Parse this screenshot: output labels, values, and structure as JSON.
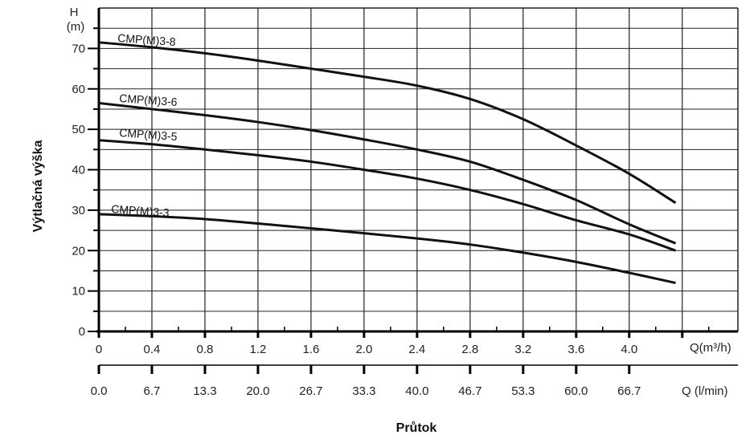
{
  "chart_data": {
    "type": "line",
    "xlabel": "Průtok",
    "ylabel": "Výtlačná výška",
    "y_unit_label": [
      "H",
      "(m)"
    ],
    "x_unit_label": "Q(m³/h)",
    "x2_unit_label": "Q (l/min)",
    "xlim": [
      0,
      4.82
    ],
    "ylim": [
      0,
      80
    ],
    "grid": true,
    "x_ticks": [
      0,
      0.4,
      0.8,
      1.2,
      1.6,
      2.0,
      2.4,
      2.8,
      3.2,
      3.6,
      4.0
    ],
    "x_tick_labels": [
      "0",
      "0.4",
      "0.8",
      "1.2",
      "1.6",
      "2.0",
      "2.4",
      "2.8",
      "3.2",
      "3.6",
      "4.0"
    ],
    "x2_tick_labels": [
      "0.0",
      "6.7",
      "13.3",
      "20.0",
      "26.7",
      "33.3",
      "40.0",
      "46.7",
      "53.3",
      "60.0",
      "66.7"
    ],
    "y_ticks": [
      0,
      10,
      20,
      30,
      40,
      50,
      60,
      70
    ],
    "y_tick_labels": [
      "0",
      "10",
      "20",
      "30",
      "40",
      "50",
      "60",
      "70"
    ],
    "x": [
      0,
      0.4,
      0.8,
      1.2,
      1.6,
      2.0,
      2.4,
      2.8,
      3.2,
      3.6,
      4.0,
      4.35
    ],
    "series": [
      {
        "name": "CMP(M)3-8",
        "values": [
          71.5,
          70.3,
          68.8,
          67.0,
          65.0,
          63.0,
          60.8,
          57.5,
          52.5,
          46.0,
          39.0,
          31.8
        ]
      },
      {
        "name": "CMP(M)3-6",
        "values": [
          56.5,
          55.0,
          53.5,
          51.8,
          49.8,
          47.5,
          45.0,
          42.0,
          37.5,
          32.5,
          26.5,
          21.8
        ]
      },
      {
        "name": "CMP(M)3-5",
        "values": [
          47.3,
          46.3,
          45.0,
          43.6,
          42.0,
          40.0,
          37.8,
          35.0,
          31.5,
          27.5,
          24.0,
          20.0
        ]
      },
      {
        "name": "CMP(M)3-3",
        "values": [
          29.0,
          28.5,
          27.8,
          26.7,
          25.5,
          24.3,
          23.0,
          21.5,
          19.5,
          17.2,
          14.5,
          12.0
        ]
      }
    ],
    "line_color": "#111111"
  }
}
